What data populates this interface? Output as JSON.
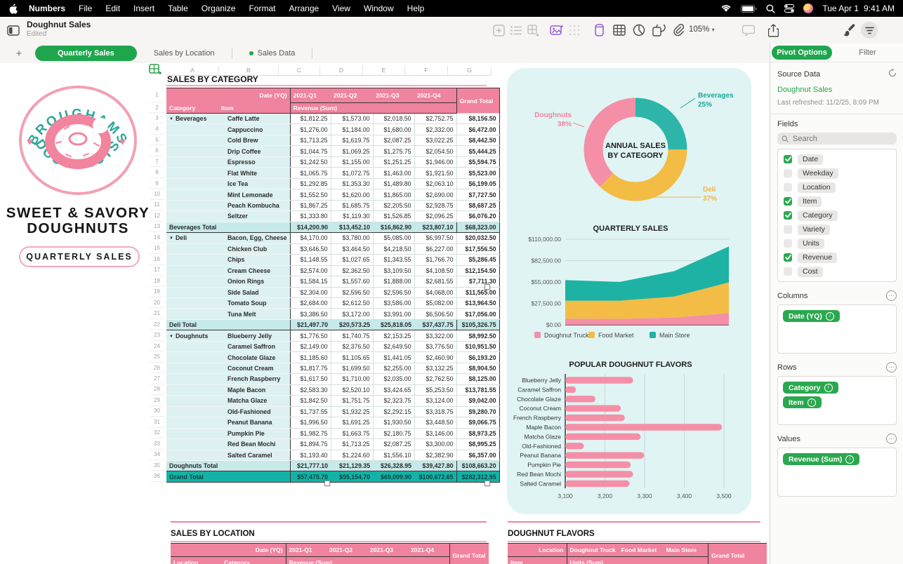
{
  "menu_bar": {
    "items": [
      "Numbers",
      "File",
      "Edit",
      "Insert",
      "Table",
      "Organize",
      "Format",
      "Arrange",
      "View",
      "Window",
      "Help"
    ],
    "status_date": "Tue Apr 1",
    "status_time": "9:41 AM"
  },
  "toolbar": {
    "title": "Doughnut Sales",
    "subtitle": "Edited",
    "zoom": "105%"
  },
  "tabs": [
    {
      "label": "Quarterly Sales",
      "active": true,
      "dot": false
    },
    {
      "label": "Sales by Location",
      "active": false,
      "dot": false
    },
    {
      "label": "Sales Data",
      "active": false,
      "dot": true
    }
  ],
  "branding": {
    "logo_arc_top": "BROUGHAMS",
    "logo_arc_bottom": "DOUGHNUTS",
    "tagline": "SWEET & SAVORY DOUGHNUTS",
    "badge": "QUARTERLY SALES"
  },
  "sheet": {
    "column_letters": [
      "A",
      "B",
      "C",
      "D",
      "E",
      "F",
      "G"
    ],
    "row_count": 36,
    "table": {
      "title": "SALES BY CATEGORY",
      "date_label": "Date (YQ)",
      "quarters": [
        "2021-Q1",
        "2021-Q2",
        "2021-Q3",
        "2021-Q4"
      ],
      "grand_total_label": "Grand Total",
      "row_header_1": "Category",
      "row_header_2": "Item",
      "values_label": "Revenue (Sum)",
      "groups": [
        {
          "category": "Beverages",
          "total_label": "Beverages Total",
          "items": [
            {
              "item": "Caffe Latte",
              "values": [
                "$1,812.25",
                "$1,573.00",
                "$2,018.50",
                "$2,752.75"
              ],
              "total": "$8,156.50"
            },
            {
              "item": "Cappuccino",
              "values": [
                "$1,276.00",
                "$1,184.00",
                "$1,680.00",
                "$2,332.00"
              ],
              "total": "$6,472.00"
            },
            {
              "item": "Cold Brew",
              "values": [
                "$1,713.25",
                "$1,619.75",
                "$2,087.25",
                "$3,022.25"
              ],
              "total": "$8,442.50"
            },
            {
              "item": "Drip Coffee",
              "values": [
                "$1,044.75",
                "$1,069.25",
                "$1,275.75",
                "$2,054.50"
              ],
              "total": "$5,444.25"
            },
            {
              "item": "Espresso",
              "values": [
                "$1,242.50",
                "$1,155.00",
                "$1,251.25",
                "$1,946.00"
              ],
              "total": "$5,594.75"
            },
            {
              "item": "Flat White",
              "values": [
                "$1,065.75",
                "$1,072.75",
                "$1,463.00",
                "$1,921.50"
              ],
              "total": "$5,523.00"
            },
            {
              "item": "Ice Tea",
              "values": [
                "$1,292.85",
                "$1,353.30",
                "$1,489.80",
                "$2,063.10"
              ],
              "total": "$6,199.05"
            },
            {
              "item": "Mint Lemonade",
              "values": [
                "$1,552.50",
                "$1,620.00",
                "$1,865.00",
                "$2,690.00"
              ],
              "total": "$7,727.50"
            },
            {
              "item": "Peach Kombucha",
              "values": [
                "$1,867.25",
                "$1,685.75",
                "$2,205.50",
                "$2,928.75"
              ],
              "total": "$8,687.25"
            },
            {
              "item": "Seltzer",
              "values": [
                "$1,333.80",
                "$1,119.30",
                "$1,526.85",
                "$2,096.25"
              ],
              "total": "$6,076.20"
            }
          ],
          "total_values": [
            "$14,200.90",
            "$13,452.10",
            "$16,862.90",
            "$23,807.10"
          ],
          "total": "$68,323.00"
        },
        {
          "category": "Deli",
          "total_label": "Deli Total",
          "items": [
            {
              "item": "Bacon, Egg, Cheese",
              "values": [
                "$4,170.00",
                "$3,780.00",
                "$5,085.00",
                "$6,997.50"
              ],
              "total": "$20,032.50"
            },
            {
              "item": "Chicken Club",
              "values": [
                "$3,646.50",
                "$3,464.50",
                "$4,218.50",
                "$6,227.00"
              ],
              "total": "$17,556.50"
            },
            {
              "item": "Chips",
              "values": [
                "$1,148.55",
                "$1,027.65",
                "$1,343.55",
                "$1,766.70"
              ],
              "total": "$5,286.45"
            },
            {
              "item": "Cream Cheese",
              "values": [
                "$2,574.00",
                "$2,362.50",
                "$3,109.50",
                "$4,108.50"
              ],
              "total": "$12,154.50"
            },
            {
              "item": "Onion Rings",
              "values": [
                "$1,584.15",
                "$1,557.60",
                "$1,888.00",
                "$2,681.55"
              ],
              "total": "$7,711.30"
            },
            {
              "item": "Side Salad",
              "values": [
                "$2,304.00",
                "$2,596.50",
                "$2,596.50",
                "$4,068.00"
              ],
              "total": "$11,565.00"
            },
            {
              "item": "Tomato Soup",
              "values": [
                "$2,684.00",
                "$2,612.50",
                "$3,586.00",
                "$5,082.00"
              ],
              "total": "$13,964.50"
            },
            {
              "item": "Tuna Melt",
              "values": [
                "$3,386.50",
                "$3,172.00",
                "$3,991.00",
                "$6,506.50"
              ],
              "total": "$17,056.00"
            }
          ],
          "total_values": [
            "$21,497.70",
            "$20,573.25",
            "$25,818.05",
            "$37,437.75"
          ],
          "total": "$105,326.75"
        },
        {
          "category": "Doughnuts",
          "total_label": "Doughnuts Total",
          "items": [
            {
              "item": "Blueberry Jelly",
              "values": [
                "$1,776.50",
                "$1,740.75",
                "$2,153.25",
                "$3,322.00"
              ],
              "total": "$8,992.50"
            },
            {
              "item": "Caramel Saffron",
              "values": [
                "$2,149.00",
                "$2,376.50",
                "$2,649.50",
                "$3,776.50"
              ],
              "total": "$10,951.50"
            },
            {
              "item": "Chocolate Glaze",
              "values": [
                "$1,185.60",
                "$1,105.65",
                "$1,441.05",
                "$2,460.90"
              ],
              "total": "$6,193.20"
            },
            {
              "item": "Coconut Cream",
              "values": [
                "$1,817.75",
                "$1,699.50",
                "$2,255.00",
                "$3,132.25"
              ],
              "total": "$8,904.50"
            },
            {
              "item": "French Raspberry",
              "values": [
                "$1,617.50",
                "$1,710.00",
                "$2,035.00",
                "$2,762.50"
              ],
              "total": "$8,125.00"
            },
            {
              "item": "Maple Bacon",
              "values": [
                "$2,583.30",
                "$2,520.10",
                "$3,424.65",
                "$5,253.50"
              ],
              "total": "$13,781.55"
            },
            {
              "item": "Matcha Glaze",
              "values": [
                "$1,842.50",
                "$1,751.75",
                "$2,323.75",
                "$3,124.00"
              ],
              "total": "$9,042.00"
            },
            {
              "item": "Old-Fashioned",
              "values": [
                "$1,737.55",
                "$1,932.25",
                "$2,292.15",
                "$3,318.75"
              ],
              "total": "$9,280.70"
            },
            {
              "item": "Peanut Banana",
              "values": [
                "$1,996.50",
                "$1,691.25",
                "$1,930.50",
                "$3,448.50"
              ],
              "total": "$9,066.75"
            },
            {
              "item": "Pumpkin Pie",
              "values": [
                "$1,982.75",
                "$1,663.75",
                "$2,180.75",
                "$3,146.00"
              ],
              "total": "$8,973.25"
            },
            {
              "item": "Red Bean Mochi",
              "values": [
                "$1,894.75",
                "$1,713.25",
                "$2,087.25",
                "$3,300.00"
              ],
              "total": "$8,995.25"
            },
            {
              "item": "Salted Caramel",
              "values": [
                "$1,193.40",
                "$1,224.60",
                "$1,556.10",
                "$2,382.90"
              ],
              "total": "$6,357.00"
            }
          ],
          "total_values": [
            "$21,777.10",
            "$21,129.35",
            "$26,328.95",
            "$39,427.80"
          ],
          "total": "$108,663.20"
        }
      ],
      "grand_row": {
        "label": "Grand Total",
        "values": [
          "$57,475.70",
          "$55,154.70",
          "$69,009.90",
          "$100,672.65"
        ],
        "total": "$282,312.95"
      }
    }
  },
  "chart_data": [
    {
      "type": "pie",
      "donut": true,
      "title": "ANNUAL SALES BY CATEGORY",
      "labels": [
        "Beverages",
        "Deli",
        "Doughnuts"
      ],
      "values": [
        25,
        37,
        38
      ],
      "colors": [
        "#2cb5a8",
        "#f3bc45",
        "#f58fa7"
      ],
      "label_colors": [
        "#1ca89a",
        "#efb546",
        "#f2849e"
      ]
    },
    {
      "type": "area",
      "stacked": true,
      "title": "QUARTERLY SALES",
      "x": [
        "2021-Q1",
        "2021-Q2",
        "2021-Q3",
        "2021-Q4"
      ],
      "series": [
        {
          "name": "Doughnut Truck",
          "color": "#f58fa7",
          "values": [
            8000,
            7600,
            9300,
            15000
          ]
        },
        {
          "name": "Food Market",
          "color": "#f3bc45",
          "values": [
            23000,
            23400,
            27000,
            39500
          ]
        },
        {
          "name": "Main Store",
          "color": "#1eb2a4",
          "values": [
            26476,
            24155,
            32710,
            46173
          ]
        }
      ],
      "ylim": [
        0,
        110000
      ],
      "yticks": [
        "$0.00",
        "$27,500.00",
        "$55,000.00",
        "$82,500.00",
        "$110,000.00"
      ],
      "legend_position": "bottom",
      "grid": true
    },
    {
      "type": "bar",
      "orientation": "horizontal",
      "title": "POPULAR DOUGHNUT FLAVORS",
      "categories": [
        "Blueberry Jelly",
        "Caramel Saffron",
        "Chocolate Glaze",
        "Coconut Cream",
        "French Raspberry",
        "Maple Bacon",
        "Matcha Glaze",
        "Old-Fashioned",
        "Peanut Banana",
        "Pumpkin Pie",
        "Red Bean Mochi",
        "Salted Caramel"
      ],
      "values": [
        3271,
        3127,
        3176,
        3240,
        3250,
        3495,
        3290,
        3147,
        3299,
        3265,
        3271,
        3262
      ],
      "xlim": [
        3100,
        3500
      ],
      "xticks": [
        "3,100",
        "3,200",
        "3,300",
        "3,400",
        "3,500"
      ],
      "bar_color": "#f58fa7",
      "grid": true
    }
  ],
  "bottom_tables": [
    {
      "title": "SALES BY LOCATION",
      "corner_label": "Date (YQ)",
      "col_labels": [
        "2021-Q1",
        "2021-Q2",
        "2021-Q3",
        "2021-Q4"
      ],
      "grand_total_label": "Grand Total",
      "row_header_1": "Location",
      "row_header_2": "Category",
      "values_label": "Revenue (Sum)"
    },
    {
      "title": "DOUGHNUT FLAVORS",
      "corner_label": "Location",
      "col_labels": [
        "Doughnut Truck",
        "Food Market",
        "Main Store"
      ],
      "grand_total_label": "Grand Total",
      "row_header_1": "Item",
      "row_header_2": "",
      "values_label": "Units (Sum)"
    }
  ],
  "sidebar": {
    "tabs": {
      "active": "Pivot Options",
      "inactive": "Filter"
    },
    "source_data": {
      "label": "Source Data",
      "name": "Doughnut Sales",
      "refreshed": "Last refreshed: 11/2/25, 8:09 PM"
    },
    "fields": {
      "label": "Fields",
      "search_placeholder": "Search",
      "items": [
        {
          "label": "Date",
          "checked": true
        },
        {
          "label": "Weekday",
          "checked": false
        },
        {
          "label": "Location",
          "checked": false
        },
        {
          "label": "Item",
          "checked": true
        },
        {
          "label": "Category",
          "checked": true
        },
        {
          "label": "Variety",
          "checked": false
        },
        {
          "label": "Units",
          "checked": false
        },
        {
          "label": "Revenue",
          "checked": true
        },
        {
          "label": "Cost",
          "checked": false
        }
      ]
    },
    "sections": [
      {
        "label": "Columns",
        "pills": [
          "Date (YQ)"
        ]
      },
      {
        "label": "Rows",
        "pills": [
          "Category",
          "Item"
        ]
      },
      {
        "label": "Values",
        "pills": [
          "Revenue (Sum)"
        ]
      }
    ]
  },
  "colors": {
    "accent_green": "#1fa64d",
    "pill_green": "#2ba84f",
    "header_pink": "#f0839e",
    "row_cyan": "#ddf1f2",
    "subtotal_teal": "#c6e9e9",
    "grand_total_teal": "#14b2a6",
    "panel_bg": "#e0f4f4"
  }
}
